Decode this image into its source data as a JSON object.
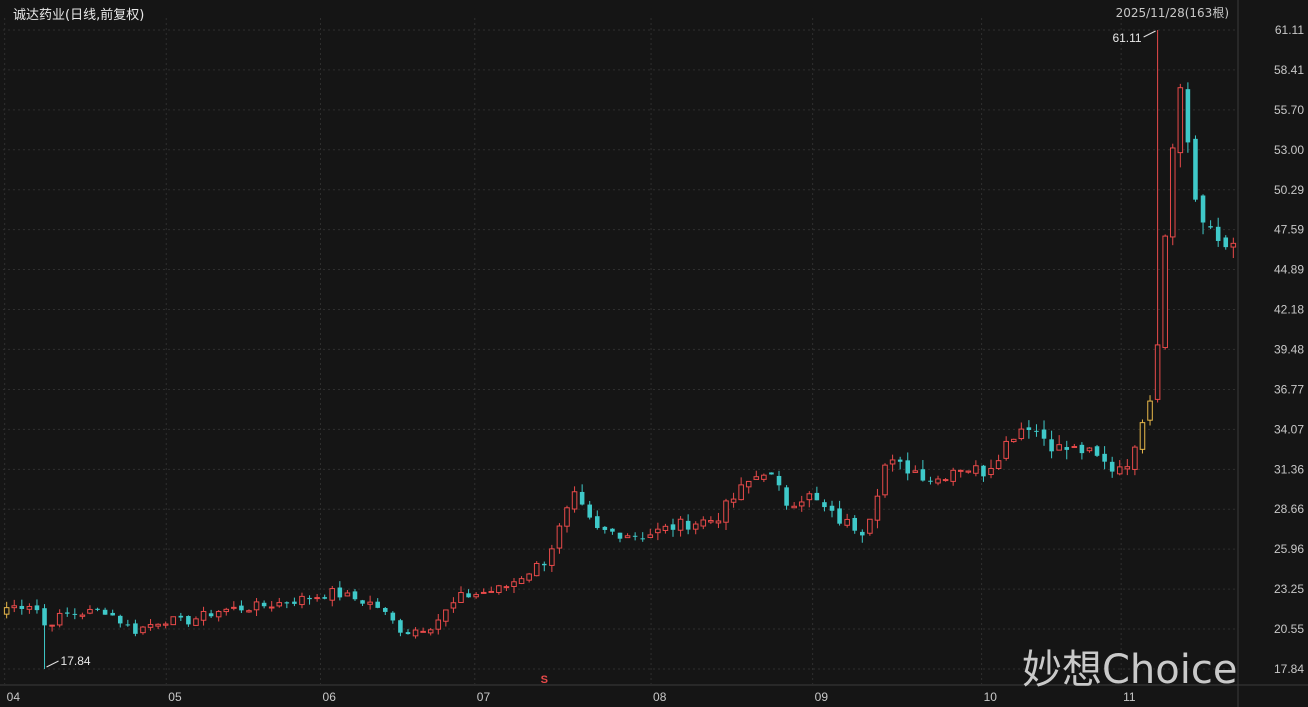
{
  "title": "诚达药业(日线,前复权)",
  "date_label": "2025/11/28(163根)",
  "watermark": "妙想Choice",
  "colors": {
    "background": "#151515",
    "up": "#e84a4a",
    "down": "#3fc9c9",
    "highlight": "#e8b84a",
    "grid": "#2f2f2f",
    "text": "#c8c8c8"
  },
  "chart_data": {
    "type": "candlestick",
    "series_count": 163,
    "y_ticks": [
      "61.11",
      "58.41",
      "55.70",
      "53.00",
      "50.29",
      "47.59",
      "44.89",
      "42.18",
      "39.48",
      "36.77",
      "34.07",
      "31.36",
      "28.66",
      "25.96",
      "23.25",
      "20.55",
      "17.84"
    ],
    "ylim": [
      17.84,
      61.11
    ],
    "x_ticks": [
      {
        "label": "04",
        "index": 0
      },
      {
        "label": "05",
        "index": 22
      },
      {
        "label": "06",
        "index": 43
      },
      {
        "label": "07",
        "index": 64
      },
      {
        "label": "08",
        "index": 88
      },
      {
        "label": "09",
        "index": 110
      },
      {
        "label": "10",
        "index": 133
      },
      {
        "label": "11",
        "index": 152
      }
    ],
    "annotations": [
      {
        "label": "61.11",
        "type": "max",
        "index": 165
      },
      {
        "label": "17.84",
        "type": "min",
        "index": 5
      },
      {
        "label": "S",
        "type": "signal",
        "index": 71
      }
    ],
    "highlighted_candles": [
      0,
      162,
      163
    ],
    "ohlc_sample": [
      {
        "label": "04",
        "o": 20.7,
        "h": 23.9,
        "l": 20.5,
        "c": 23.2
      },
      {
        "label": "05",
        "o": 20.7,
        "h": 25.0,
        "l": 20.4,
        "c": 21.0
      },
      {
        "label": "06",
        "o": 22.7,
        "h": 23.3,
        "l": 22.0,
        "c": 22.3
      },
      {
        "label": "07",
        "o": 22.6,
        "h": 23.8,
        "l": 22.4,
        "c": 23.6
      },
      {
        "label": "08",
        "o": 26.8,
        "h": 28.2,
        "l": 26.8,
        "c": 27.0
      },
      {
        "label": "09",
        "o": 29.8,
        "h": 30.0,
        "l": 28.4,
        "c": 28.6
      },
      {
        "label": "10",
        "o": 30.7,
        "h": 31.4,
        "l": 30.2,
        "c": 30.4
      },
      {
        "label": "11",
        "o": 30.8,
        "h": 31.4,
        "l": 30.6,
        "c": 31.0
      }
    ]
  }
}
